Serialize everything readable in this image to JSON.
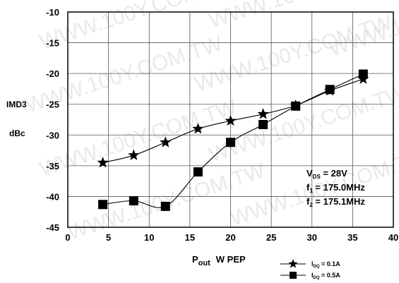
{
  "watermark": "WWW.100Y.COM.TW",
  "chart_data": {
    "type": "line",
    "xlim": [
      0,
      40
    ],
    "ylim": [
      -45,
      -10
    ],
    "x_ticks": [
      0,
      5,
      10,
      15,
      20,
      25,
      30,
      35,
      40
    ],
    "y_ticks": [
      -10,
      -15,
      -20,
      -25,
      -30,
      -35,
      -40,
      -45
    ],
    "grid": true,
    "ylabel_line1": "IMD3",
    "ylabel_line2": "dBc",
    "xlabel_main": "P",
    "xlabel_sub": "out",
    "xlabel_rest": "W  PEP",
    "annotations": {
      "vds_main": "V",
      "vds_sub": "DS",
      "vds_value": " = 28V",
      "f1_main": "f",
      "f1_sub": "1",
      "f1_value": " = 175.0MHz",
      "f2_main": "f",
      "f2_sub": "2",
      "f2_value": " = 175.1MHz"
    },
    "series": [
      {
        "legend_main": "I",
        "legend_sub": "DQ",
        "legend_value": " = 0.1A",
        "marker": "star",
        "color": "#000000",
        "x": [
          4.3,
          8.1,
          12.0,
          16.0,
          20.0,
          24.0,
          28.0,
          32.2,
          36.3
        ],
        "y": [
          -34.5,
          -33.3,
          -31.2,
          -29.0,
          -27.7,
          -26.6,
          -25.2,
          -22.8,
          -20.9
        ]
      },
      {
        "legend_main": "I",
        "legend_sub": "DQ",
        "legend_value": " = 0.5A",
        "marker": "square",
        "color": "#000000",
        "x": [
          4.3,
          8.1,
          12.0,
          16.0,
          20.0,
          24.0,
          28.0,
          32.2,
          36.3
        ],
        "y": [
          -41.3,
          -40.7,
          -41.6,
          -36.0,
          -31.2,
          -28.3,
          -25.3,
          -22.6,
          -20.1
        ]
      }
    ]
  }
}
